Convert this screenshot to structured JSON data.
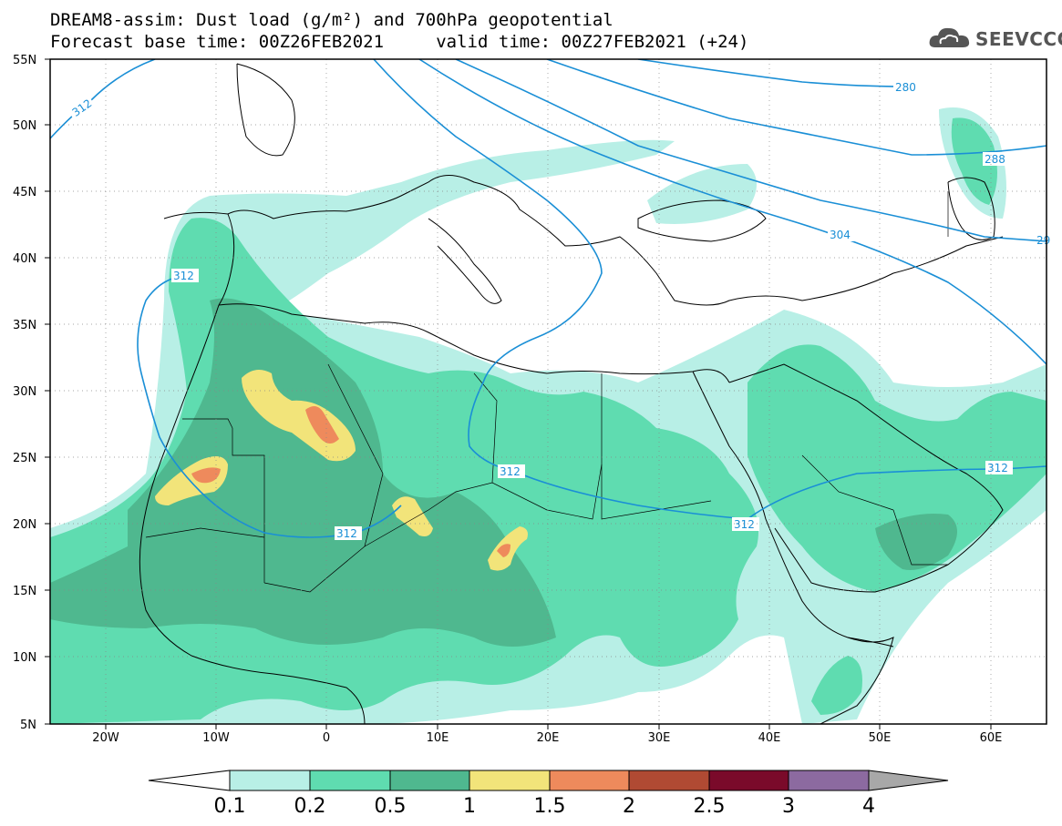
{
  "title": {
    "line1": "DREAM8-assim: Dust load (g/m²) and 700hPa geopotential",
    "line2": "Forecast base time: 00Z26FEB2021     valid time: 00Z27FEB2021 (+24)"
  },
  "logo": {
    "text": "SEEVCCC",
    "icon": "cloud-logo-icon"
  },
  "map": {
    "lat_labels": [
      "55N",
      "50N",
      "45N",
      "40N",
      "35N",
      "30N",
      "25N",
      "20N",
      "15N",
      "10N",
      "5N"
    ],
    "lon_labels": [
      "20W",
      "10W",
      "0",
      "10E",
      "20E",
      "30E",
      "40E",
      "50E",
      "60E"
    ],
    "lat_range": [
      5,
      55
    ],
    "lon_range": [
      -25,
      65
    ],
    "grid": true
  },
  "contour_labels": [
    "312",
    "312",
    "280",
    "288",
    "304",
    "312",
    "312",
    "312",
    "312",
    "29"
  ],
  "colorbar": {
    "labels": [
      "0.1",
      "0.2",
      "0.5",
      "1",
      "1.5",
      "2",
      "2.5",
      "3",
      "4"
    ],
    "colors": [
      "#b8efe6",
      "#5fdcb0",
      "#4fb88f",
      "#f2e47a",
      "#ee8a5c",
      "#b04a33",
      "#7a0a2a",
      "#8c6aa0"
    ],
    "under_color": "#ffffff",
    "over_color": "#a8a8a8"
  }
}
